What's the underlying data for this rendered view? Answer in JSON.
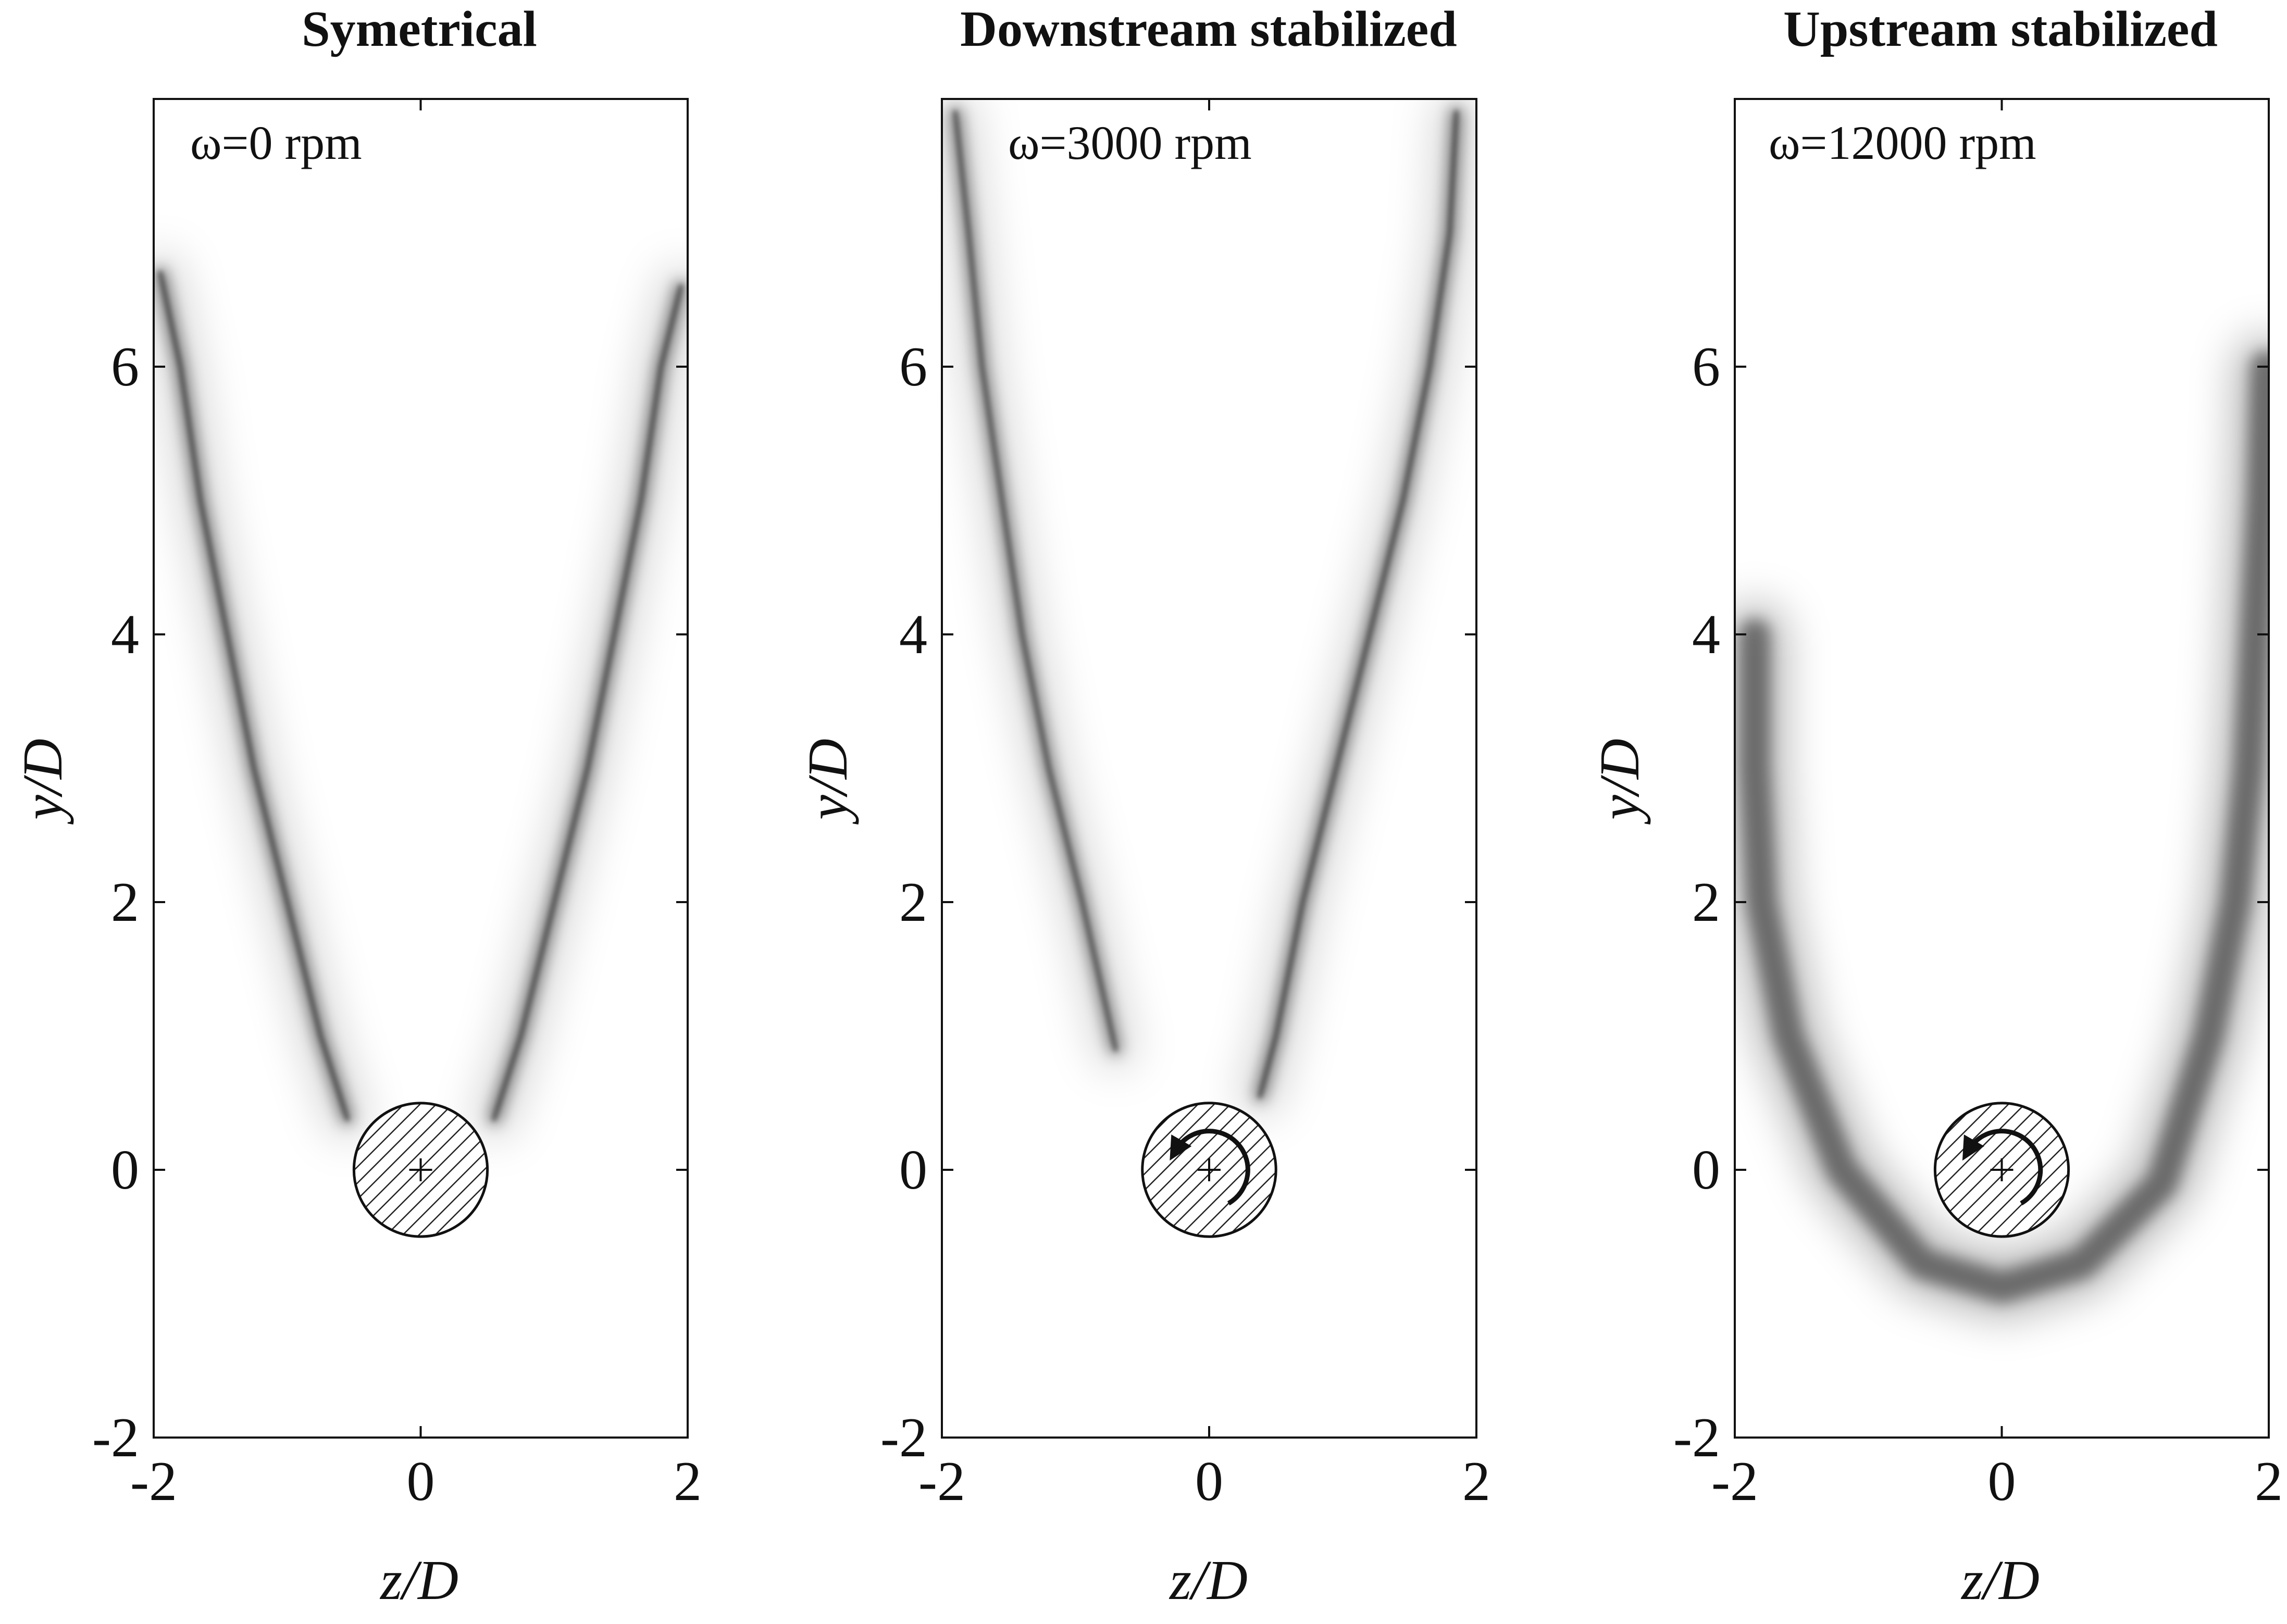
{
  "chart_data": [
    {
      "type": "heatmap",
      "title": "Symetrical",
      "annotation": "ω=0 rpm",
      "xlabel": "z/D",
      "ylabel": "y/D",
      "xlim": [
        -2,
        2
      ],
      "ylim": [
        -2,
        8
      ],
      "xticks": [
        -2,
        0,
        2
      ],
      "yticks": [
        -2,
        0,
        2,
        4,
        6
      ],
      "xtick_labels": [
        "-2",
        "0",
        "2"
      ],
      "ytick_labels": [
        "-2",
        "0",
        "2",
        "4",
        "6"
      ],
      "cylinder": {
        "center": [
          0,
          0
        ],
        "diameter": 1,
        "rotation_arrow": false
      },
      "flame_branches": [
        {
          "name": "",
          "points": [
            [
              -0.55,
              0.38
            ],
            [
              -0.75,
              1.0
            ],
            [
              -1.0,
              2.0
            ],
            [
              -1.25,
              3.0
            ],
            [
              -1.45,
              4.0
            ],
            [
              -1.65,
              5.0
            ],
            [
              -1.8,
              6.0
            ],
            [
              -1.95,
              6.7
            ]
          ],
          "intensity": 0.9
        },
        {
          "name": "",
          "points": [
            [
              0.55,
              0.38
            ],
            [
              0.75,
              1.0
            ],
            [
              1.0,
              2.0
            ],
            [
              1.25,
              3.0
            ],
            [
              1.45,
              4.0
            ],
            [
              1.65,
              5.0
            ],
            [
              1.8,
              6.0
            ],
            [
              1.95,
              6.6
            ]
          ],
          "intensity": 0.9
        }
      ]
    },
    {
      "type": "heatmap",
      "title": "Downstream stabilized",
      "annotation": "ω=3000 rpm",
      "xlabel": "z/D",
      "ylabel": "y/D",
      "xlim": [
        -2,
        2
      ],
      "ylim": [
        -2,
        8
      ],
      "xticks": [
        -2,
        0,
        2
      ],
      "yticks": [
        -2,
        0,
        2,
        4,
        6
      ],
      "xtick_labels": [
        "-2",
        "0",
        "2"
      ],
      "ytick_labels": [
        "-2",
        "0",
        "2",
        "4",
        "6"
      ],
      "cylinder": {
        "center": [
          0,
          0
        ],
        "diameter": 1,
        "rotation_arrow": true
      },
      "flame_branches": [
        {
          "name": "",
          "points": [
            [
              -0.7,
              0.9
            ],
            [
              -0.95,
              2.0
            ],
            [
              -1.2,
              3.0
            ],
            [
              -1.4,
              4.0
            ],
            [
              -1.55,
              5.0
            ],
            [
              -1.7,
              6.0
            ],
            [
              -1.8,
              7.0
            ],
            [
              -1.9,
              7.9
            ]
          ],
          "intensity": 0.85
        },
        {
          "name": "",
          "points": [
            [
              0.38,
              0.55
            ],
            [
              0.5,
              1.0
            ],
            [
              0.7,
              2.0
            ],
            [
              0.95,
              3.0
            ],
            [
              1.2,
              4.0
            ],
            [
              1.45,
              5.0
            ],
            [
              1.65,
              6.0
            ],
            [
              1.8,
              7.0
            ],
            [
              1.85,
              7.9
            ]
          ],
          "intensity": 0.9
        }
      ]
    },
    {
      "type": "heatmap",
      "title": "Upstream stabilized",
      "annotation": "ω=12000 rpm",
      "xlabel": "z/D",
      "ylabel": "y/D",
      "xlim": [
        -2,
        2
      ],
      "ylim": [
        -2,
        8
      ],
      "xticks": [
        -2,
        0,
        2
      ],
      "yticks": [
        -2,
        0,
        2,
        4,
        6
      ],
      "xtick_labels": [
        "-2",
        "0",
        "2"
      ],
      "ytick_labels": [
        "-2",
        "0",
        "2",
        "4",
        "6"
      ],
      "cylinder": {
        "center": [
          0,
          0
        ],
        "diameter": 1,
        "rotation_arrow": true
      },
      "flame_branches": [
        {
          "name": "",
          "points": [
            [
              -1.85,
              4.0
            ],
            [
              -1.85,
              3.0
            ],
            [
              -1.8,
              2.0
            ],
            [
              -1.6,
              1.0
            ],
            [
              -1.2,
              0.0
            ],
            [
              -0.6,
              -0.7
            ],
            [
              0.0,
              -0.88
            ],
            [
              0.6,
              -0.7
            ],
            [
              1.2,
              -0.1
            ],
            [
              1.55,
              1.0
            ],
            [
              1.75,
              2.0
            ],
            [
              1.85,
              3.0
            ],
            [
              1.9,
              4.0
            ],
            [
              1.95,
              5.0
            ],
            [
              1.98,
              6.0
            ]
          ],
          "intensity": 0.8
        }
      ]
    }
  ]
}
